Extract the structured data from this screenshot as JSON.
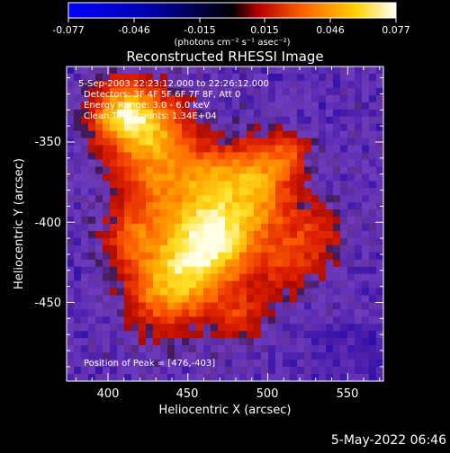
{
  "colorbar": {
    "tick_labels": [
      "-0.077",
      "-0.046",
      "-0.015",
      "0.015",
      "0.046",
      "0.077"
    ],
    "units": "(photons cm⁻² s⁻¹ asec⁻²)",
    "stops": [
      "#0000ff",
      "#000000",
      "#b40000",
      "#ff6400",
      "#ffd200",
      "#ffffff"
    ]
  },
  "plot": {
    "title": "Reconstructed RHESSI Image",
    "xlabel": "Heliocentric X (arcsec)",
    "ylabel": "Heliocentric Y (arcsec)",
    "x_ticks": [
      "400",
      "450",
      "500",
      "550"
    ],
    "y_ticks": [
      "-350",
      "-400",
      "-450"
    ],
    "annotations": {
      "time": "5-Sep-2003 22:23:12.000 to 22:26:12.000",
      "detectors": "Detectors: 3F 4F 5F 6F 7F 8F, Att 0",
      "energy": "Energy Range: 3.0 - 6.0 keV",
      "clean": "Clean    Total counts: 1.34E+04",
      "peak": "Position of Peak = [476,-403]"
    }
  },
  "footer": {
    "date": "5-May-2022 06:46"
  }
}
